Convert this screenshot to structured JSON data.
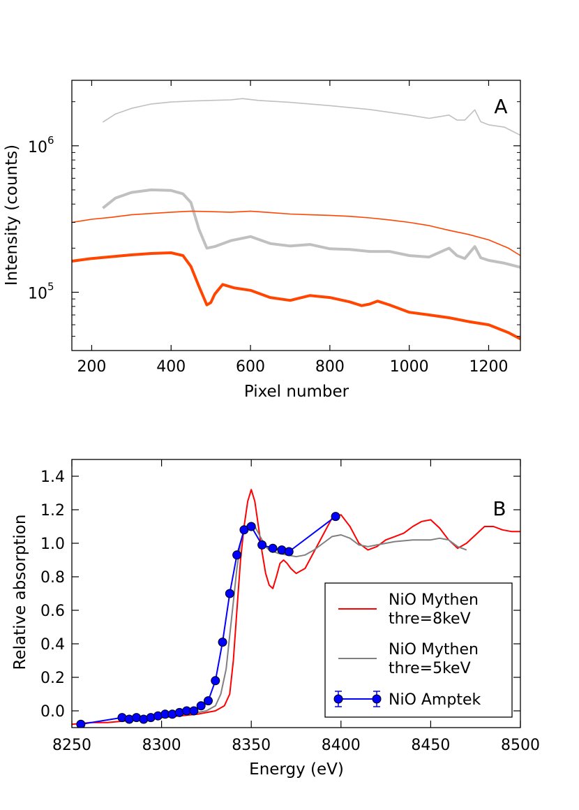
{
  "chart_data": [
    {
      "panel": "A",
      "type": "line",
      "y_scale": "log",
      "title": "",
      "xlabel": "Pixel number",
      "ylabel": "Intensity (counts)",
      "xlim": [
        150,
        1280
      ],
      "ylim": [
        40000,
        2800000
      ],
      "x_ticks": [
        200,
        400,
        600,
        800,
        1000,
        1200
      ],
      "x_tick_labels": [
        "200",
        "400",
        "600",
        "800",
        "1000",
        "1200"
      ],
      "y_ticks": [
        100000,
        1000000
      ],
      "y_tick_labels": [
        {
          "base": "10",
          "exp": "5"
        },
        {
          "base": "10",
          "exp": "6"
        }
      ],
      "panel_label": "A",
      "series": [
        {
          "name": "light grey thin",
          "color": "#c0c0c0",
          "style": "thin",
          "x": [
            228,
            260,
            300,
            350,
            400,
            450,
            500,
            550,
            580,
            620,
            700,
            800,
            900,
            1000,
            1050,
            1100,
            1120,
            1140,
            1165,
            1180,
            1200,
            1240,
            1280
          ],
          "y": [
            1450000,
            1650000,
            1800000,
            1930000,
            1990000,
            2020000,
            2040000,
            2060000,
            2100000,
            2040000,
            1980000,
            1880000,
            1770000,
            1620000,
            1540000,
            1620000,
            1500000,
            1500000,
            1760000,
            1460000,
            1390000,
            1340000,
            1180000
          ]
        },
        {
          "name": "light grey thick",
          "color": "#c0c0c0",
          "style": "thick",
          "x": [
            228,
            260,
            300,
            350,
            400,
            430,
            450,
            470,
            490,
            510,
            550,
            600,
            650,
            700,
            750,
            800,
            850,
            900,
            950,
            1000,
            1050,
            1100,
            1120,
            1140,
            1165,
            1180,
            1200,
            1240,
            1280
          ],
          "y": [
            375000,
            440000,
            480000,
            500000,
            495000,
            470000,
            410000,
            270000,
            200000,
            205000,
            225000,
            240000,
            215000,
            207000,
            212000,
            198000,
            196000,
            190000,
            190000,
            178000,
            174000,
            200000,
            178000,
            170000,
            205000,
            172000,
            165000,
            158000,
            148000
          ]
        },
        {
          "name": "orange thin",
          "color": "#ff4500",
          "style": "thin",
          "x": [
            150,
            200,
            250,
            300,
            350,
            400,
            450,
            500,
            550,
            600,
            650,
            700,
            750,
            800,
            850,
            900,
            950,
            1000,
            1050,
            1100,
            1150,
            1200,
            1250,
            1280
          ],
          "y": [
            300000,
            315000,
            325000,
            338000,
            345000,
            352000,
            358000,
            355000,
            352000,
            358000,
            350000,
            342000,
            338000,
            335000,
            330000,
            322000,
            312000,
            300000,
            285000,
            265000,
            248000,
            228000,
            200000,
            178000
          ]
        },
        {
          "name": "orange thick",
          "color": "#ff4500",
          "style": "thick",
          "x": [
            150,
            200,
            250,
            300,
            350,
            400,
            430,
            450,
            470,
            490,
            500,
            510,
            530,
            560,
            600,
            650,
            700,
            750,
            800,
            850,
            880,
            900,
            920,
            950,
            1000,
            1050,
            1100,
            1150,
            1200,
            1250,
            1280
          ],
          "y": [
            163000,
            170000,
            175000,
            180000,
            184000,
            186000,
            178000,
            150000,
            110000,
            82000,
            85000,
            97000,
            113000,
            107000,
            103000,
            92000,
            88000,
            95000,
            92000,
            86000,
            81000,
            83000,
            87000,
            82000,
            73000,
            70000,
            67000,
            63000,
            60000,
            53000,
            48000
          ]
        }
      ]
    },
    {
      "panel": "B",
      "type": "line",
      "title": "",
      "xlabel": "Energy (eV)",
      "ylabel": "Relative absorption",
      "xlim": [
        8250,
        8500
      ],
      "ylim": [
        -0.1,
        1.5
      ],
      "x_ticks": [
        8250,
        8300,
        8350,
        8400,
        8450,
        8500
      ],
      "x_tick_labels": [
        "8250",
        "8300",
        "8350",
        "8400",
        "8450",
        "8500"
      ],
      "y_ticks": [
        0.0,
        0.2,
        0.4,
        0.6,
        0.8,
        1.0,
        1.2,
        1.4
      ],
      "y_tick_labels": [
        "0.0",
        "0.2",
        "0.4",
        "0.6",
        "0.8",
        "1.0",
        "1.2",
        "1.4"
      ],
      "panel_label": "B",
      "legend": {
        "placement": "lower-right",
        "entries": [
          {
            "label_line1": "NiO Mythen",
            "label_line2": "thre=8keV",
            "color": "#ff0000",
            "kind": "line"
          },
          {
            "label_line1": "NiO Mythen",
            "label_line2": "thre=5keV",
            "color": "#808080",
            "kind": "line"
          },
          {
            "label_line1": "NiO Amptek",
            "label_line2": "",
            "color": "#0000ff",
            "kind": "errorbar"
          }
        ]
      },
      "series": [
        {
          "name": "NiO Mythen thre=8keV",
          "color": "#ff0000",
          "x": [
            8250,
            8260,
            8270,
            8280,
            8290,
            8300,
            8310,
            8320,
            8325,
            8330,
            8335,
            8338,
            8340,
            8342,
            8344,
            8346,
            8348,
            8350,
            8352,
            8354,
            8356,
            8358,
            8360,
            8362,
            8364,
            8366,
            8368,
            8370,
            8372,
            8375,
            8380,
            8385,
            8390,
            8395,
            8400,
            8405,
            8410,
            8415,
            8420,
            8425,
            8430,
            8435,
            8440,
            8445,
            8450,
            8455,
            8460,
            8465,
            8470,
            8475,
            8480,
            8485,
            8490,
            8495,
            8500
          ],
          "y": [
            -0.08,
            -0.07,
            -0.07,
            -0.06,
            -0.05,
            -0.04,
            -0.03,
            -0.02,
            -0.01,
            0.0,
            0.03,
            0.1,
            0.3,
            0.6,
            0.9,
            1.1,
            1.25,
            1.32,
            1.25,
            1.1,
            0.95,
            0.82,
            0.75,
            0.73,
            0.8,
            0.88,
            0.9,
            0.88,
            0.85,
            0.82,
            0.85,
            0.95,
            1.05,
            1.15,
            1.17,
            1.1,
            1.0,
            0.96,
            0.98,
            1.02,
            1.04,
            1.06,
            1.1,
            1.13,
            1.14,
            1.09,
            1.02,
            0.97,
            1.0,
            1.05,
            1.1,
            1.1,
            1.08,
            1.07,
            1.07
          ]
        },
        {
          "name": "NiO Mythen thre=5keV",
          "color": "#808080",
          "x": [
            8280,
            8290,
            8300,
            8310,
            8320,
            8325,
            8330,
            8333,
            8336,
            8338,
            8340,
            8342,
            8344,
            8346,
            8348,
            8350,
            8352,
            8354,
            8356,
            8358,
            8360,
            8365,
            8370,
            8375,
            8380,
            8385,
            8390,
            8395,
            8400,
            8405,
            8410,
            8415,
            8420,
            8430,
            8440,
            8450,
            8455,
            8460,
            8465,
            8470
          ],
          "y": [
            -0.05,
            -0.04,
            -0.03,
            -0.02,
            -0.01,
            0.0,
            0.03,
            0.1,
            0.25,
            0.45,
            0.65,
            0.85,
            1.0,
            1.08,
            1.11,
            1.12,
            1.1,
            1.06,
            1.02,
            0.98,
            0.96,
            0.94,
            0.93,
            0.92,
            0.93,
            0.96,
            1.0,
            1.04,
            1.05,
            1.03,
            0.99,
            0.98,
            0.99,
            1.01,
            1.02,
            1.02,
            1.03,
            1.02,
            0.98,
            0.96
          ]
        },
        {
          "name": "NiO Amptek",
          "color": "#0000ff",
          "x": [
            8255,
            8278,
            8282,
            8286,
            8290,
            8294,
            8298,
            8302,
            8306,
            8310,
            8314,
            8318,
            8322,
            8326,
            8330,
            8334,
            8338,
            8342,
            8346,
            8350,
            8356,
            8362,
            8367,
            8371,
            8397
          ],
          "y": [
            -0.08,
            -0.04,
            -0.05,
            -0.04,
            -0.05,
            -0.04,
            -0.03,
            -0.02,
            -0.02,
            -0.01,
            0.0,
            0.0,
            0.03,
            0.06,
            0.18,
            0.41,
            0.7,
            0.93,
            1.08,
            1.1,
            0.99,
            0.97,
            0.96,
            0.95,
            1.16
          ]
        }
      ]
    }
  ]
}
